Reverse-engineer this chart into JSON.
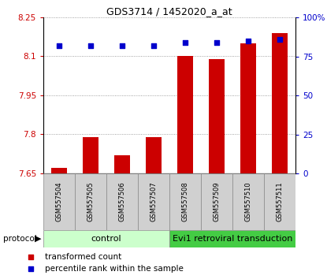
{
  "title": "GDS3714 / 1452020_a_at",
  "samples": [
    "GSM557504",
    "GSM557505",
    "GSM557506",
    "GSM557507",
    "GSM557508",
    "GSM557509",
    "GSM557510",
    "GSM557511"
  ],
  "transformed_counts": [
    7.67,
    7.79,
    7.72,
    7.79,
    8.1,
    8.09,
    8.15,
    8.19
  ],
  "percentile_ranks": [
    82,
    82,
    82,
    82,
    84,
    84,
    85,
    86
  ],
  "ylim_left": [
    7.65,
    8.25
  ],
  "ylim_right": [
    0,
    100
  ],
  "yticks_left": [
    7.65,
    7.8,
    7.95,
    8.1,
    8.25
  ],
  "yticks_right": [
    0,
    25,
    50,
    75,
    100
  ],
  "bar_color": "#cc0000",
  "scatter_color": "#0000cc",
  "bar_bottom": 7.65,
  "ctrl_color": "#ccffcc",
  "evi_color": "#44cc44",
  "sample_box_color": "#d0d0d0",
  "xlabel_color": "#cc0000",
  "ylabel_right_color": "#0000cc",
  "legend_items": [
    {
      "label": "transformed count",
      "color": "#cc0000"
    },
    {
      "label": "percentile rank within the sample",
      "color": "#0000cc"
    }
  ]
}
